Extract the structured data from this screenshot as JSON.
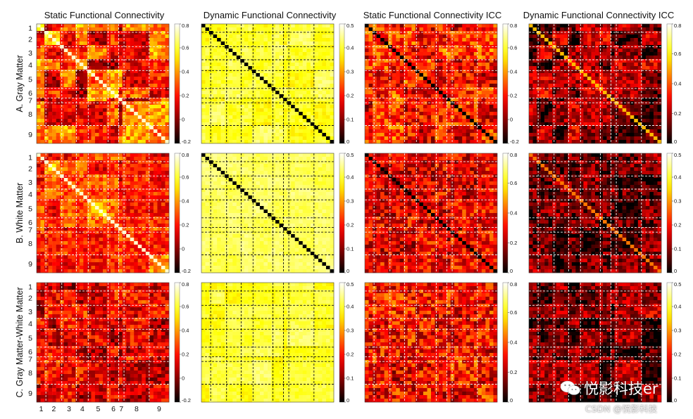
{
  "chart_data": {
    "type": "heatmap",
    "columns": [
      {
        "title": "Static Functional Connectivity",
        "colorbar": {
          "ticks": [
            "0.8",
            "0.6",
            "0.4",
            "0.2",
            "0",
            "-0.2"
          ],
          "range": [
            -0.2,
            0.8
          ]
        }
      },
      {
        "title": "Dynamic Functional Connectivity",
        "colorbar": {
          "ticks": [
            "0.5",
            "0.4",
            "0.3",
            "0.2",
            "0.1",
            "0"
          ],
          "range": [
            0,
            0.5
          ]
        }
      },
      {
        "title": "Static Functional Connectivity ICC",
        "colorbar": {
          "ticks": [
            "0.8",
            "0.6",
            "0.4",
            "0.2",
            "0",
            "-0.2"
          ],
          "range": [
            -0.2,
            0.8
          ]
        }
      },
      {
        "title": "Dynamic Functional Connectivity ICC",
        "colorbar": {
          "ticks": [
            "0.8",
            "0.6",
            "0.4",
            "0.2",
            "0"
          ],
          "range": [
            0,
            0.8
          ]
        }
      }
    ],
    "rows": [
      {
        "label": "A. Gray Matter",
        "y_ticks": [
          "1",
          "2",
          "3",
          "4",
          "5",
          "6",
          "7",
          "8",
          "9"
        ]
      },
      {
        "label": "B. White Matter",
        "y_ticks": [
          "1",
          "2",
          "3",
          "4",
          "5",
          "6",
          "7",
          "8",
          "9"
        ]
      },
      {
        "label": "C. Gray Matter-White Matter",
        "y_ticks": [
          "1",
          "2",
          "3",
          "4",
          "5",
          "6",
          "7",
          "8",
          "9"
        ]
      }
    ],
    "row_colorbars": [
      [
        {
          "ticks": [
            "0.8",
            "0.6",
            "0.4",
            "0.2",
            "0",
            "-0.2"
          ],
          "range": [
            -0.2,
            0.8
          ]
        },
        {
          "ticks": [
            "0.5",
            "0.4",
            "0.3",
            "0.2",
            "0.1",
            "0"
          ],
          "range": [
            0,
            0.5
          ]
        },
        {
          "ticks": [
            "0.8",
            "0.6",
            "0.4",
            "0.2",
            "0",
            "-0.2"
          ],
          "range": [
            -0.2,
            0.8
          ]
        },
        {
          "ticks": [
            "0.8",
            "0.6",
            "0.4",
            "0.2",
            "0"
          ],
          "range": [
            0,
            0.8
          ]
        }
      ],
      [
        {
          "ticks": [
            "0.8",
            "0.6",
            "0.4",
            "0.2",
            "0",
            "-0.2"
          ],
          "range": [
            -0.2,
            0.8
          ]
        },
        {
          "ticks": [
            "0.5",
            "0.4",
            "0.3",
            "0.2",
            "0.1",
            "0"
          ],
          "range": [
            0,
            0.5
          ]
        },
        {
          "ticks": [
            "0.8",
            "0.6",
            "0.4",
            "0.2",
            "0"
          ],
          "range": [
            0,
            0.8
          ]
        },
        {
          "ticks": [
            "0.5",
            "0.4",
            "0.3",
            "0.2",
            "0.1",
            "0"
          ],
          "range": [
            0,
            0.5
          ]
        }
      ],
      [
        {
          "ticks": [
            "0.8",
            "0.6",
            "0.4",
            "0.2",
            "0",
            "-0.2"
          ],
          "range": [
            -0.2,
            0.8
          ]
        },
        {
          "ticks": [
            "0.5",
            "0.4",
            "0.3",
            "0.2",
            "0.1",
            "0"
          ],
          "range": [
            0,
            0.5
          ]
        },
        {
          "ticks": [
            "0.8",
            "0.6",
            "0.4",
            "0.2",
            "0"
          ],
          "range": [
            0,
            0.8
          ]
        },
        {
          "ticks": [
            "0.5",
            "0.4",
            "0.3",
            "0.2",
            "0.1",
            "0"
          ],
          "range": [
            0,
            0.5
          ]
        }
      ]
    ],
    "x_ticks": [
      "1",
      "2",
      "3",
      "4",
      "5",
      "6",
      "7",
      "8",
      "9"
    ],
    "colormap": "hot"
  },
  "watermark": {
    "text": "悦影科技er",
    "subtext": "CSDN @悦影科技",
    "logo_icon": "wechat-icon"
  }
}
